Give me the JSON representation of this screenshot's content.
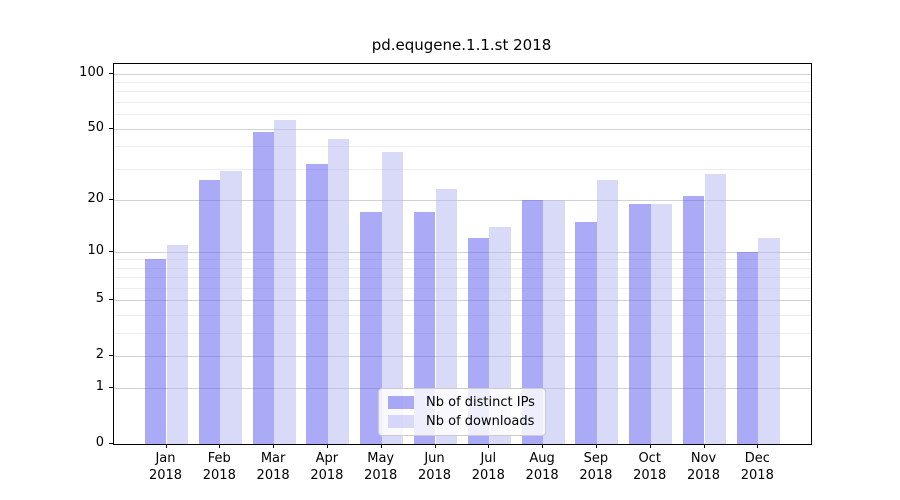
{
  "title": "pd.equgene.1.1.st 2018",
  "chart_data": {
    "type": "bar",
    "title": "pd.equgene.1.1.st 2018",
    "categories": [
      "Jan",
      "Feb",
      "Mar",
      "Apr",
      "May",
      "Jun",
      "Jul",
      "Aug",
      "Sep",
      "Oct",
      "Nov",
      "Dec"
    ],
    "x_year_label": "2018",
    "series": [
      {
        "name": "Nb of distinct IPs",
        "color": "rgba(85,85,238,0.5)",
        "effective_hex": "#aaaaf6",
        "values": [
          9,
          26,
          48,
          32,
          17,
          17,
          12,
          20,
          15,
          19,
          21,
          10
        ]
      },
      {
        "name": "Nb of downloads",
        "color": "rgba(179,179,241,0.5)",
        "effective_hex": "#d9d9f8",
        "values": [
          11,
          29,
          56,
          44,
          37,
          23,
          14,
          20,
          26,
          19,
          28,
          12
        ]
      }
    ],
    "yscale": "log1p",
    "ylim": [
      0,
      113
    ],
    "y_ticks": [
      0,
      1,
      2,
      5,
      10,
      20,
      50,
      100
    ],
    "y_minor_ticks": [
      3,
      4,
      6,
      7,
      8,
      9,
      30,
      40,
      60,
      70,
      80,
      90
    ],
    "grid": true,
    "gridline_major_color": "#d2d2d2",
    "gridline_minor_color": "#ededed",
    "legend_position": "lower center",
    "legend": [
      "Nb of distinct IPs",
      "Nb of downloads"
    ]
  }
}
